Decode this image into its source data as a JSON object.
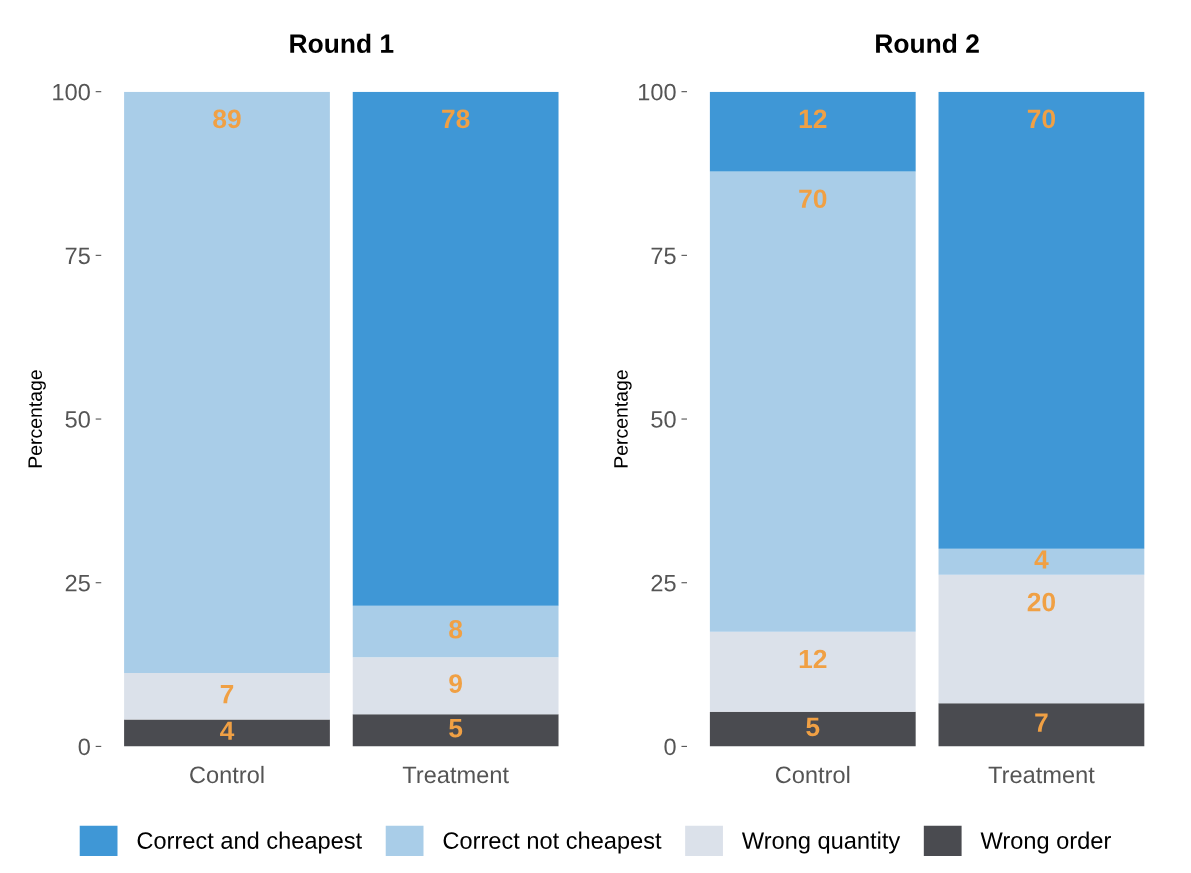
{
  "chart_data": [
    {
      "type": "bar",
      "title": "Round 1",
      "ylabel": "Percentage",
      "categories": [
        "Control",
        "Treatment"
      ],
      "stacked": true,
      "ylim": [
        0,
        100
      ],
      "yticks": [
        0,
        25,
        50,
        75,
        100
      ],
      "grid": false,
      "legend": "bottom",
      "series": [
        {
          "name": "Wrong order",
          "color": "#4a4b50",
          "values": [
            4.1,
            4.9
          ],
          "value_labels": [
            "4",
            "5"
          ]
        },
        {
          "name": "Wrong quantity",
          "color": "#dbe1ea",
          "values": [
            7.1,
            8.7
          ],
          "value_labels": [
            "7",
            "9"
          ]
        },
        {
          "name": "Correct not cheapest",
          "color": "#a9cde8",
          "values": [
            88.8,
            7.9
          ],
          "value_labels": [
            "89",
            "8"
          ]
        },
        {
          "name": "Correct and cheapest",
          "color": "#3f97d6",
          "values": [
            0,
            78.5
          ],
          "value_labels": [
            null,
            "78"
          ]
        }
      ]
    },
    {
      "type": "bar",
      "title": "Round 2",
      "ylabel": "Percentage",
      "categories": [
        "Control",
        "Treatment"
      ],
      "stacked": true,
      "ylim": [
        0,
        100
      ],
      "yticks": [
        0,
        25,
        50,
        75,
        100
      ],
      "grid": false,
      "series": [
        {
          "color": "#4a4b50",
          "values": [
            5.3,
            6.6
          ],
          "value_labels": [
            "5",
            "7"
          ]
        },
        {
          "color": "#dbe1ea",
          "values": [
            12.2,
            19.6
          ],
          "value_labels": [
            "12",
            "20"
          ]
        },
        {
          "color": "#a9cde8",
          "values": [
            70.3,
            4.0
          ],
          "value_labels": [
            "70",
            "4"
          ]
        },
        {
          "color": "#3f97d6",
          "values": [
            12.2,
            69.8
          ],
          "value_labels": [
            "12",
            "70"
          ]
        }
      ]
    }
  ]
}
